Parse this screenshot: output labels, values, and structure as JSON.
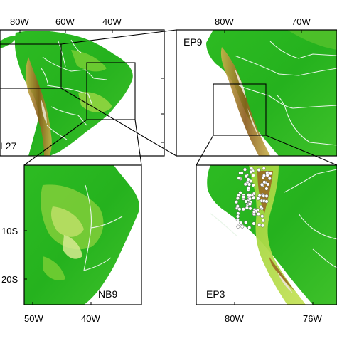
{
  "panels": {
    "top_left": {
      "label": "L27",
      "lon_labels": [
        "80W",
        "60W",
        "40W"
      ]
    },
    "top_right": {
      "label": "EP9",
      "lon_labels": [
        "80W",
        "70W"
      ]
    },
    "bottom_left": {
      "label": "NB9",
      "lon_labels": [
        "50W",
        "40W"
      ],
      "lat_labels": [
        "10S",
        "20S"
      ]
    },
    "bottom_right": {
      "label": "EP3",
      "lon_labels": [
        "80W",
        "76W"
      ]
    }
  },
  "colors": {
    "ocean": "#ffffff",
    "lowland": "#1fb51f",
    "highland": "#b7dd3a",
    "mountain": "#8a5a1a",
    "peak": "#e8e2cc",
    "borders": "#e8f5e8",
    "points": "#ffffff"
  }
}
